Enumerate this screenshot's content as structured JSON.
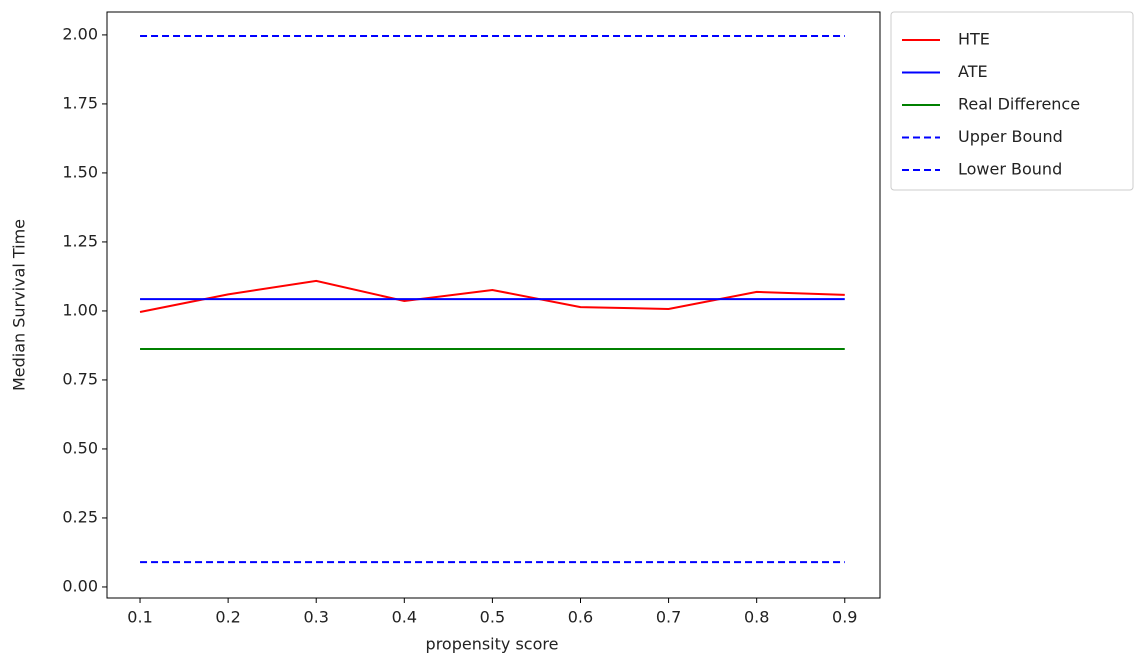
{
  "chart_data": {
    "type": "line",
    "xlabel": "propensity score",
    "ylabel": "Median Survival Time",
    "x": [
      0.1,
      0.2,
      0.3,
      0.4,
      0.5,
      0.6,
      0.7,
      0.8,
      0.9
    ],
    "series": [
      {
        "name": "HTE",
        "color": "#ff0000",
        "linestyle": "solid",
        "values": [
          0.996,
          1.06,
          1.109,
          1.036,
          1.076,
          1.014,
          1.007,
          1.069,
          1.058
        ]
      },
      {
        "name": "ATE",
        "color": "#0000ff",
        "linestyle": "solid",
        "values": [
          1.043,
          1.043,
          1.043,
          1.043,
          1.043,
          1.043,
          1.043,
          1.043,
          1.043
        ]
      },
      {
        "name": "Real Difference",
        "color": "#008000",
        "linestyle": "solid",
        "values": [
          0.862,
          0.862,
          0.862,
          0.862,
          0.862,
          0.862,
          0.862,
          0.862,
          0.862
        ]
      },
      {
        "name": "Upper Bound",
        "color": "#0000ff",
        "linestyle": "dashed",
        "values": [
          1.996,
          1.996,
          1.996,
          1.996,
          1.996,
          1.996,
          1.996,
          1.996,
          1.996
        ]
      },
      {
        "name": "Lower Bound",
        "color": "#0000ff",
        "linestyle": "dashed",
        "values": [
          0.09,
          0.09,
          0.09,
          0.09,
          0.09,
          0.09,
          0.09,
          0.09,
          0.09
        ]
      }
    ],
    "xlim": [
      0.0625,
      0.94
    ],
    "ylim": [
      -0.04,
      2.083
    ],
    "xticks": [
      0.1,
      0.2,
      0.3,
      0.4,
      0.5,
      0.6,
      0.7,
      0.8,
      0.9
    ],
    "yticks": [
      {
        "value": 0,
        "label": "0.00"
      },
      {
        "value": 0.25,
        "label": "0.25"
      },
      {
        "value": 0.5,
        "label": "0.50"
      },
      {
        "value": 0.75,
        "label": "0.75"
      },
      {
        "value": 1,
        "label": "1.00"
      },
      {
        "value": 1.25,
        "label": "1.25"
      },
      {
        "value": 1.5,
        "label": "1.50"
      },
      {
        "value": 1.75,
        "label": "1.75"
      },
      {
        "value": 2,
        "label": "2.00"
      }
    ],
    "grid": false,
    "legend": "outside-upper-right"
  }
}
